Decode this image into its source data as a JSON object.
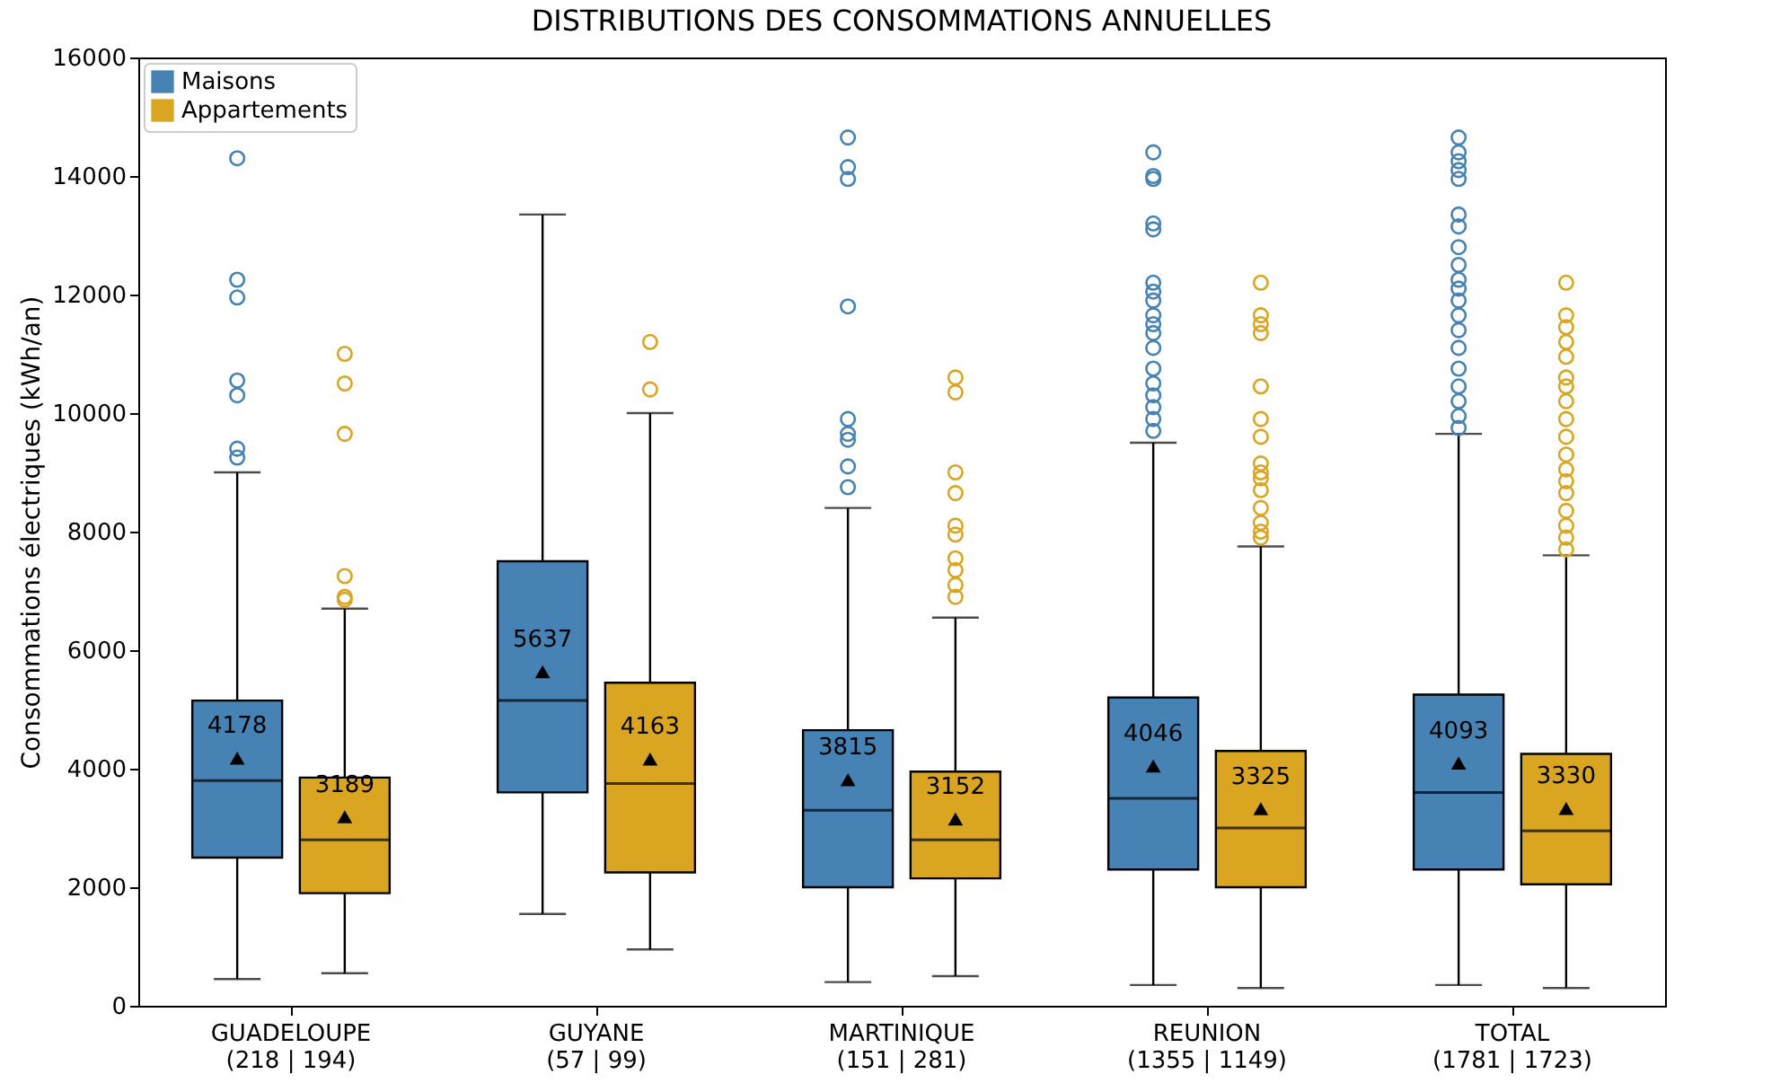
{
  "chart_data": {
    "type": "box",
    "title": "DISTRIBUTIONS DES CONSOMMATIONS ANNUELLES",
    "ylabel": "Consommations électriques (kWh/an)",
    "categories": [
      "GUADELOUPE\n(218 | 194)",
      "GUYANE\n(57 | 99)",
      "MARTINIQUE\n(151 | 281)",
      "REUNION\n(1355 | 1149)",
      "TOTAL\n(1781 | 1723)"
    ],
    "ylim": [
      0,
      16000
    ],
    "yticks": [
      0,
      2000,
      4000,
      6000,
      8000,
      10000,
      12000,
      14000,
      16000
    ],
    "grid": false,
    "legend": "top left",
    "series": [
      {
        "name": "Maisons",
        "color": "#4682b4",
        "value_labels": [
          "4178",
          "5637",
          "3815",
          "4046",
          "4093"
        ],
        "boxes": [
          {
            "low": 450,
            "q1": 2500,
            "median": 3800,
            "q3": 5150,
            "high": 9000,
            "mean": 4178,
            "outliers": [
              14300,
              12250,
              11950,
              10550,
              10300,
              9400,
              9250
            ]
          },
          {
            "low": 1550,
            "q1": 3600,
            "median": 5150,
            "q3": 7500,
            "high": 13350,
            "mean": 5637
          },
          {
            "low": 400,
            "q1": 2000,
            "median": 3300,
            "q3": 4650,
            "high": 8400,
            "mean": 3815,
            "outliers": [
              14650,
              14150,
              13950,
              11800,
              9900,
              9650,
              9550,
              9100,
              8750
            ]
          },
          {
            "low": 350,
            "q1": 2300,
            "median": 3500,
            "q3": 5200,
            "high": 9500,
            "mean": 4046,
            "outliers": [
              14400,
              14000,
              13950,
              13200,
              13100,
              12200,
              12050,
              11900,
              11650,
              11500,
              11350,
              11100,
              10750,
              10500,
              10300,
              10100,
              9900,
              9700
            ]
          },
          {
            "low": 350,
            "q1": 2300,
            "median": 3600,
            "q3": 5250,
            "high": 9650,
            "mean": 4093,
            "outliers": [
              14650,
              14400,
              14250,
              14100,
              13950,
              13350,
              13150,
              12800,
              12500,
              12250,
              12100,
              11900,
              11650,
              11400,
              11100,
              10750,
              10450,
              10200,
              9950,
              9750
            ]
          }
        ]
      },
      {
        "name": "Appartements",
        "color": "#daa520",
        "value_labels": [
          "3189",
          "4163",
          "3152",
          "3325",
          "3330"
        ],
        "boxes": [
          {
            "low": 550,
            "q1": 1900,
            "median": 2800,
            "q3": 3850,
            "high": 6700,
            "mean": 3189,
            "outliers": [
              11000,
              10500,
              9650,
              7250,
              6900,
              6850
            ]
          },
          {
            "low": 950,
            "q1": 2250,
            "median": 3750,
            "q3": 5450,
            "high": 10000,
            "mean": 4163,
            "outliers": [
              11200,
              10400
            ]
          },
          {
            "low": 500,
            "q1": 2150,
            "median": 2800,
            "q3": 3950,
            "high": 6550,
            "mean": 3152,
            "outliers": [
              10600,
              10350,
              9000,
              8650,
              8100,
              7950,
              7550,
              7350,
              7100,
              6900
            ]
          },
          {
            "low": 300,
            "q1": 2000,
            "median": 3000,
            "q3": 4300,
            "high": 7750,
            "mean": 3325,
            "outliers": [
              12200,
              11650,
              11500,
              11350,
              10450,
              9900,
              9600,
              9150,
              9000,
              8900,
              8700,
              8400,
              8150,
              8000,
              7900
            ]
          },
          {
            "low": 300,
            "q1": 2050,
            "median": 2950,
            "q3": 4250,
            "high": 7600,
            "mean": 3330,
            "outliers": [
              12200,
              11650,
              11450,
              11200,
              10950,
              10600,
              10450,
              10200,
              9900,
              9600,
              9300,
              9050,
              8850,
              8650,
              8350,
              8100,
              7900,
              7700
            ]
          }
        ]
      }
    ]
  }
}
